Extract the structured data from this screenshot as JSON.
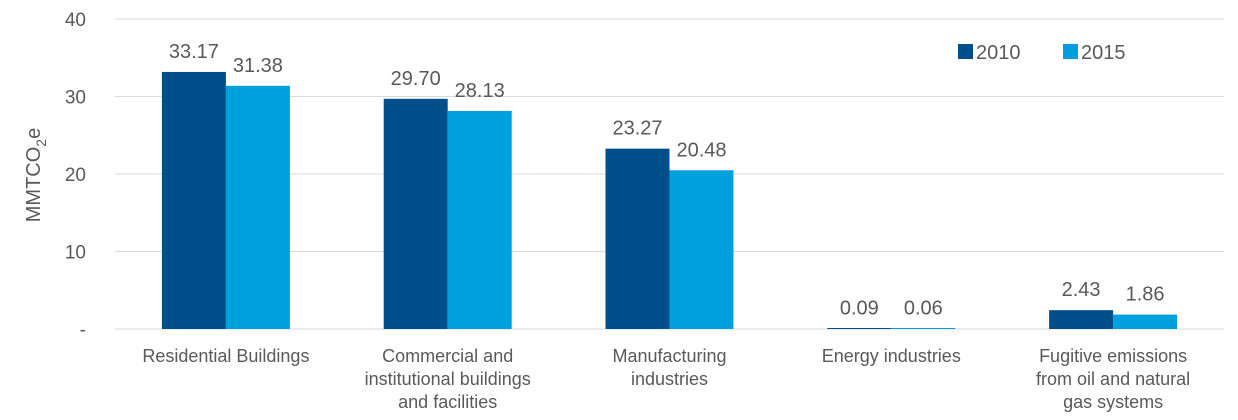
{
  "chart_data": {
    "type": "bar",
    "ylabel": "MMTCO",
    "ylabel_sub": "2",
    "ylabel_suffix": "e",
    "ylim": [
      0,
      40
    ],
    "yticks": [
      0,
      10,
      20,
      30,
      40
    ],
    "ytick_labels": [
      "-",
      "10",
      "20",
      "30",
      "40"
    ],
    "grid": true,
    "legend_position": "top-right",
    "categories": [
      [
        "Residential Buildings"
      ],
      [
        "Commercial and",
        "institutional buildings",
        "and facilities"
      ],
      [
        "Manufacturing",
        "industries"
      ],
      [
        "Energy industries"
      ],
      [
        "Fugitive emissions",
        "from oil and natural",
        "gas systems"
      ]
    ],
    "series": [
      {
        "name": "2010",
        "color": "#004F8B",
        "values": [
          33.17,
          29.7,
          23.27,
          0.09,
          2.43
        ],
        "labels": [
          "33.17",
          "29.70",
          "23.27",
          "0.09",
          "2.43"
        ]
      },
      {
        "name": "2015",
        "color": "#00A0DF",
        "values": [
          31.38,
          28.13,
          20.48,
          0.06,
          1.86
        ],
        "labels": [
          "31.38",
          "28.13",
          "20.48",
          "0.06",
          "1.86"
        ]
      }
    ]
  }
}
